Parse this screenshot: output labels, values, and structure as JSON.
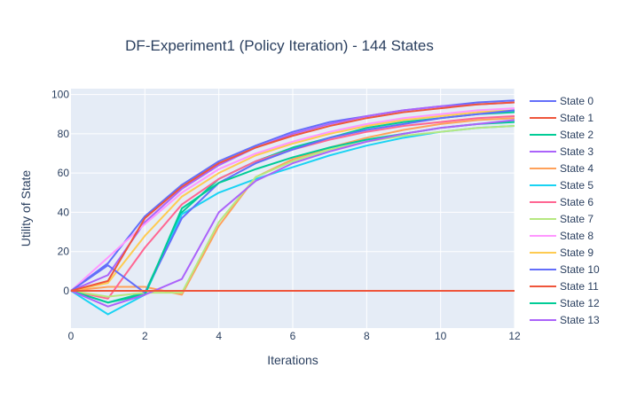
{
  "chart_data": {
    "type": "line",
    "title": "DF-Experiment1 (Policy Iteration) - 144 States",
    "xlabel": "Iterations",
    "ylabel": "Utility of State",
    "xlim": [
      0,
      12
    ],
    "ylim": [
      -19,
      103
    ],
    "xticks": [
      0,
      2,
      4,
      6,
      8,
      10,
      12
    ],
    "yticks": [
      0,
      20,
      40,
      60,
      80,
      100
    ],
    "grid": true,
    "legend_position": "right",
    "x": [
      0,
      1,
      2,
      3,
      4,
      5,
      6,
      7,
      8,
      9,
      10,
      11,
      12
    ],
    "series": [
      {
        "name": "State 0",
        "color": "#636efa",
        "values": [
          0,
          14,
          38,
          54,
          66,
          74,
          81,
          86,
          89,
          92,
          94,
          96,
          97
        ]
      },
      {
        "name": "State 1",
        "color": "#EF553B",
        "values": [
          0,
          0,
          0,
          0,
          0,
          0,
          0,
          0,
          0,
          0,
          0,
          0,
          0
        ]
      },
      {
        "name": "State 2",
        "color": "#00cc96",
        "values": [
          0,
          -6,
          -1,
          40,
          57,
          66,
          73,
          78,
          83,
          86,
          88,
          90,
          91
        ]
      },
      {
        "name": "State 3",
        "color": "#ab63fa",
        "values": [
          0,
          8,
          35,
          52,
          64,
          73,
          80,
          85,
          89,
          92,
          94,
          95,
          96
        ]
      },
      {
        "name": "State 4",
        "color": "#FFA15A",
        "values": [
          0,
          2,
          2,
          -2,
          33,
          58,
          67,
          73,
          78,
          82,
          85,
          87,
          88
        ]
      },
      {
        "name": "State 5",
        "color": "#19d3f3",
        "values": [
          0,
          -12,
          -2,
          39,
          50,
          57,
          63,
          69,
          74,
          78,
          81,
          83,
          84
        ]
      },
      {
        "name": "State 6",
        "color": "#FF6692",
        "values": [
          0,
          -4,
          22,
          44,
          57,
          66,
          72,
          77,
          81,
          84,
          86,
          88,
          89
        ]
      },
      {
        "name": "State 7",
        "color": "#B6E880",
        "values": [
          0,
          -3,
          -1,
          -1,
          35,
          58,
          66,
          72,
          76,
          79,
          81,
          83,
          84
        ]
      },
      {
        "name": "State 8",
        "color": "#FF97FF",
        "values": [
          0,
          17,
          34,
          50,
          62,
          70,
          76,
          81,
          85,
          88,
          90,
          92,
          93
        ]
      },
      {
        "name": "State 9",
        "color": "#FECB52",
        "values": [
          0,
          4,
          28,
          48,
          60,
          69,
          75,
          80,
          84,
          87,
          89,
          91,
          92
        ]
      },
      {
        "name": "State 10",
        "color": "#636efa",
        "values": [
          0,
          13,
          -1,
          37,
          55,
          65,
          72,
          78,
          82,
          85,
          88,
          90,
          92
        ]
      },
      {
        "name": "State 11",
        "color": "#EF553B",
        "values": [
          0,
          5,
          37,
          53,
          65,
          73,
          79,
          84,
          88,
          91,
          93,
          95,
          96
        ]
      },
      {
        "name": "State 12",
        "color": "#00cc96",
        "values": [
          0,
          -6,
          -2,
          42,
          55,
          62,
          68,
          73,
          77,
          80,
          83,
          85,
          86
        ]
      },
      {
        "name": "State 13",
        "color": "#ab63fa",
        "values": [
          0,
          -8,
          -2,
          6,
          40,
          56,
          65,
          71,
          76,
          80,
          83,
          85,
          87
        ]
      }
    ]
  },
  "background": {
    "paper": "#ffffff",
    "plot": "#e5ecf6",
    "grid": "#ffffff",
    "text": "#2a3f5f"
  }
}
